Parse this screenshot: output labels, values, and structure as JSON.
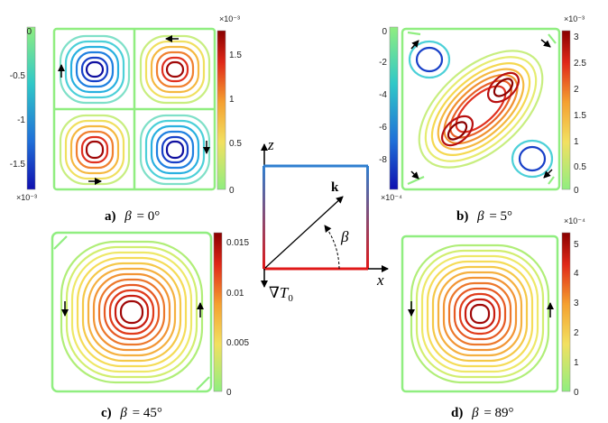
{
  "panels": [
    {
      "id": "a",
      "caption": {
        "letter": "a)",
        "beta": "β",
        "equals": "= 0°"
      },
      "colorbar": {
        "scheme": "blue-green",
        "ticks": [
          "0",
          "-0.5",
          "-1",
          "-1.5"
        ],
        "exponent": "×10⁻³",
        "exponent_position": "bottom"
      },
      "colorbar2": {
        "scheme": "green-red",
        "ticks": [
          "1.5",
          "1",
          "0.5",
          "0"
        ],
        "exponent": "×10⁻³",
        "exponent_position": "top"
      }
    },
    {
      "id": "b",
      "caption": {
        "letter": "b)",
        "beta": "β",
        "equals": "= 5°"
      },
      "colorbar": {
        "scheme": "blue-green",
        "ticks": [
          "0",
          "-2",
          "-4",
          "-6",
          "-8"
        ],
        "exponent": "×10⁻⁴",
        "exponent_position": "bottom"
      },
      "colorbar2": {
        "scheme": "green-red",
        "ticks": [
          "3",
          "2.5",
          "2",
          "1.5",
          "1",
          "0.5",
          "0"
        ],
        "exponent": "×10⁻³",
        "exponent_position": "top"
      }
    },
    {
      "id": "c",
      "caption": {
        "letter": "c)",
        "beta": "β",
        "equals": "= 45°"
      },
      "colorbar": {
        "scheme": "green-red",
        "ticks": [
          "0.015",
          "0.01",
          "0.005",
          "0"
        ],
        "exponent": "",
        "exponent_position": "top"
      }
    },
    {
      "id": "d",
      "caption": {
        "letter": "d)",
        "beta": "β",
        "equals": "= 89°"
      },
      "colorbar": {
        "scheme": "green-red",
        "ticks": [
          "5",
          "4",
          "3",
          "2",
          "1",
          "0"
        ],
        "exponent": "×10⁻⁴",
        "exponent_position": "top"
      }
    }
  ],
  "schematic": {
    "z_label": "z",
    "x_label": "x",
    "k_label": "k",
    "beta_label": "β",
    "gradient_nabla": "∇",
    "gradient_T": "T",
    "gradient_sub": "0"
  },
  "colors": {
    "frame_green": "#90ee80",
    "top_wall": "#2f7fd0",
    "bottom_wall": "#e01818"
  }
}
